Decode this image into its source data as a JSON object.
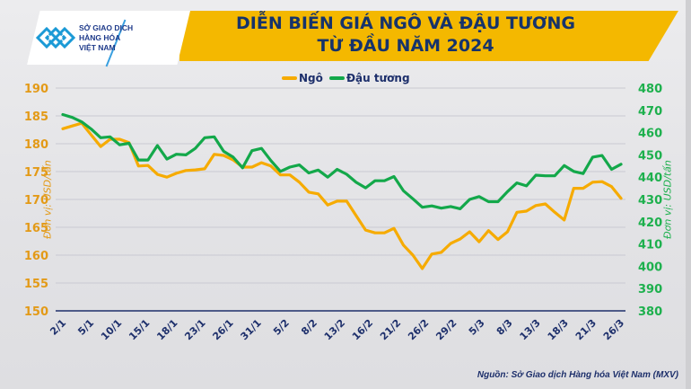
{
  "header": {
    "logo_text": [
      "SỞ GIAO DỊCH",
      "HÀNG HÓA",
      "VIỆT NAM"
    ],
    "title_line1": "DIỄN BIẾN GIÁ NGÔ VÀ ĐẬU TƯƠNG",
    "title_line2": "TỪ ĐẦU NĂM 2024"
  },
  "footer": {
    "source": "Nguồn: Sở Giao dịch Hàng hóa Việt Nam (MXV)"
  },
  "colors": {
    "corn": "#f6ab00",
    "soy": "#13a84a",
    "left_axis": "#e39a17",
    "right_axis": "#1db04d",
    "axis_line": "#1d2f6b",
    "title_band": "#f4b800",
    "title_text": "#16336b"
  },
  "chart_data": {
    "type": "line",
    "title": "DIỄN BIẾN GIÁ NGÔ VÀ ĐẬU TƯƠNG TỪ ĐẦU NĂM 2024",
    "xlabel": "",
    "ylabel_left": "Đơn vị: USD/tấn",
    "ylabel_right": "Đơn vị: USD/tấn",
    "legend_position": "top-center",
    "grid": true,
    "ylim_left": [
      150,
      190
    ],
    "ylim_right": [
      380,
      480
    ],
    "yticks_left": [
      "150",
      "155",
      "160",
      "165",
      "170",
      "175",
      "180",
      "185",
      "190"
    ],
    "yticks_right": [
      "380",
      "390",
      "400",
      "410",
      "420",
      "430",
      "440",
      "450",
      "460",
      "470",
      "480"
    ],
    "xtick_labels": [
      "2/1",
      "5/1",
      "10/1",
      "15/1",
      "18/1",
      "23/1",
      "26/1",
      "31/1",
      "5/2",
      "8/2",
      "13/2",
      "16/2",
      "21/2",
      "26/2",
      "29/2",
      "5/3",
      "8/3",
      "13/3",
      "18/3",
      "21/3",
      "26/3"
    ],
    "point_count": 60,
    "series": [
      {
        "name": "Ngô",
        "axis": "left",
        "values": [
          182.7,
          183.2,
          183.7,
          181.6,
          179.5,
          180.8,
          180.8,
          180.2,
          176.0,
          176.1,
          174.5,
          174.0,
          174.7,
          175.2,
          175.3,
          175.5,
          178.1,
          177.9,
          177.1,
          175.8,
          175.8,
          176.6,
          176.0,
          174.4,
          174.4,
          173.1,
          171.3,
          171.0,
          169.0,
          169.7,
          169.7,
          167.1,
          164.5,
          164.0,
          164.0,
          164.8,
          161.8,
          160.0,
          157.6,
          160.2,
          160.5,
          162.1,
          162.9,
          164.2,
          162.4,
          164.4,
          162.8,
          164.2,
          167.7,
          167.9,
          168.9,
          169.2,
          167.7,
          166.3,
          172.0,
          172.0,
          173.1,
          173.2,
          172.3,
          170.2
        ]
      },
      {
        "name": "Đậu tương",
        "axis": "right",
        "values": [
          468.1,
          466.8,
          464.8,
          461.6,
          457.7,
          458.1,
          454.5,
          455.2,
          447.7,
          447.7,
          454.2,
          448.1,
          450.3,
          450.0,
          452.9,
          457.7,
          458.1,
          451.6,
          449.0,
          444.2,
          451.9,
          452.9,
          447.4,
          442.6,
          444.5,
          445.5,
          441.9,
          443.2,
          440.0,
          443.5,
          441.3,
          437.7,
          435.2,
          438.4,
          438.4,
          440.3,
          433.9,
          430.3,
          426.5,
          427.1,
          426.1,
          426.8,
          425.8,
          430.0,
          431.3,
          429.0,
          429.0,
          433.5,
          437.4,
          436.1,
          440.9,
          440.6,
          440.6,
          445.2,
          442.6,
          441.6,
          449.0,
          449.7,
          443.5,
          445.8
        ]
      }
    ]
  }
}
